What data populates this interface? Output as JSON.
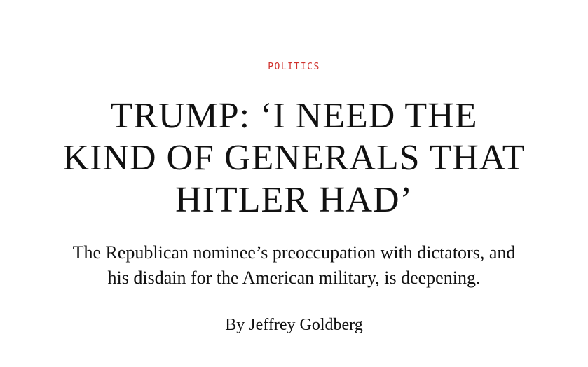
{
  "article": {
    "section": "POLITICS",
    "headline_lines": [
      "TRUMP: ‘I NEED THE",
      "KIND OF GENERALS THAT",
      "HITLER HAD’"
    ],
    "dek_lines": [
      "The Republican nominee’s preoccupation with dictators, and",
      "his disdain for the American military, is deepening."
    ],
    "byline_prefix": "By",
    "author": "Jeffrey Goldberg"
  },
  "colors": {
    "section_accent": "#d0312d",
    "text": "#111111",
    "background": "#ffffff"
  }
}
